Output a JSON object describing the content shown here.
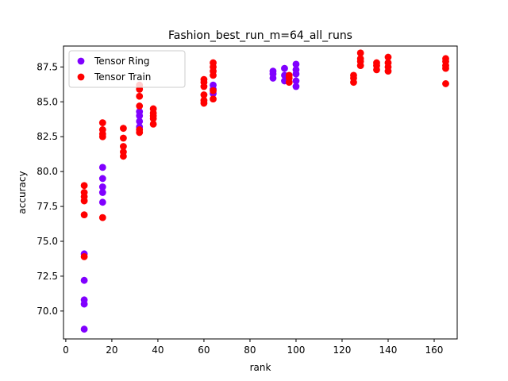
{
  "chart_data": {
    "type": "scatter",
    "title": "Fashion_best_run_m=64_all_runs",
    "xlabel": "rank",
    "ylabel": "accuracy",
    "xlim": [
      -1,
      170
    ],
    "ylim": [
      68.0,
      89.0
    ],
    "xticks": [
      0,
      20,
      40,
      60,
      80,
      100,
      120,
      140,
      160
    ],
    "yticks": [
      70.0,
      72.5,
      75.0,
      77.5,
      80.0,
      82.5,
      85.0,
      87.5
    ],
    "ytick_labels": [
      "70.0",
      "72.5",
      "75.0",
      "77.5",
      "80.0",
      "82.5",
      "85.0",
      "87.5"
    ],
    "legend_position": "top-left",
    "grid": false,
    "series": [
      {
        "name": "Tensor Ring",
        "color": "#8000ff",
        "points": [
          [
            8,
            74.1
          ],
          [
            8,
            72.2
          ],
          [
            8,
            70.8
          ],
          [
            8,
            70.5
          ],
          [
            8,
            68.7
          ],
          [
            16,
            80.3
          ],
          [
            16,
            79.5
          ],
          [
            16,
            78.9
          ],
          [
            16,
            78.5
          ],
          [
            16,
            77.8
          ],
          [
            32,
            84.3
          ],
          [
            32,
            84.0
          ],
          [
            32,
            83.6
          ],
          [
            32,
            83.2
          ],
          [
            64,
            86.2
          ],
          [
            64,
            85.9
          ],
          [
            64,
            85.6
          ],
          [
            90,
            87.2
          ],
          [
            90,
            87.0
          ],
          [
            90,
            86.7
          ],
          [
            95,
            87.4
          ],
          [
            95,
            86.9
          ],
          [
            95,
            86.5
          ],
          [
            100,
            87.7
          ],
          [
            100,
            87.3
          ],
          [
            100,
            87.0
          ],
          [
            100,
            86.5
          ],
          [
            100,
            86.1
          ]
        ]
      },
      {
        "name": "Tensor Train",
        "color": "#ff0000",
        "points": [
          [
            8,
            79.0
          ],
          [
            8,
            78.5
          ],
          [
            8,
            78.2
          ],
          [
            8,
            77.9
          ],
          [
            8,
            76.9
          ],
          [
            8,
            73.9
          ],
          [
            16,
            83.5
          ],
          [
            16,
            83.0
          ],
          [
            16,
            82.7
          ],
          [
            16,
            82.5
          ],
          [
            16,
            76.7
          ],
          [
            25,
            83.1
          ],
          [
            25,
            82.4
          ],
          [
            25,
            81.8
          ],
          [
            25,
            81.4
          ],
          [
            25,
            81.1
          ],
          [
            32,
            86.2
          ],
          [
            32,
            85.9
          ],
          [
            32,
            85.4
          ],
          [
            32,
            84.7
          ],
          [
            32,
            83.0
          ],
          [
            32,
            82.8
          ],
          [
            38,
            84.5
          ],
          [
            38,
            84.2
          ],
          [
            38,
            84.0
          ],
          [
            38,
            83.8
          ],
          [
            38,
            83.4
          ],
          [
            60,
            86.6
          ],
          [
            60,
            86.4
          ],
          [
            60,
            86.1
          ],
          [
            60,
            85.5
          ],
          [
            60,
            85.1
          ],
          [
            60,
            84.9
          ],
          [
            64,
            87.8
          ],
          [
            64,
            87.5
          ],
          [
            64,
            87.2
          ],
          [
            64,
            86.9
          ],
          [
            64,
            85.8
          ],
          [
            64,
            85.2
          ],
          [
            97,
            86.9
          ],
          [
            97,
            86.7
          ],
          [
            97,
            86.4
          ],
          [
            125,
            86.9
          ],
          [
            125,
            86.7
          ],
          [
            125,
            86.4
          ],
          [
            128,
            88.5
          ],
          [
            128,
            88.1
          ],
          [
            128,
            87.9
          ],
          [
            128,
            87.6
          ],
          [
            135,
            87.8
          ],
          [
            135,
            87.6
          ],
          [
            135,
            87.3
          ],
          [
            140,
            88.2
          ],
          [
            140,
            87.8
          ],
          [
            140,
            87.5
          ],
          [
            140,
            87.2
          ],
          [
            165,
            88.1
          ],
          [
            165,
            87.9
          ],
          [
            165,
            87.6
          ],
          [
            165,
            87.4
          ],
          [
            165,
            86.3
          ]
        ]
      }
    ]
  }
}
